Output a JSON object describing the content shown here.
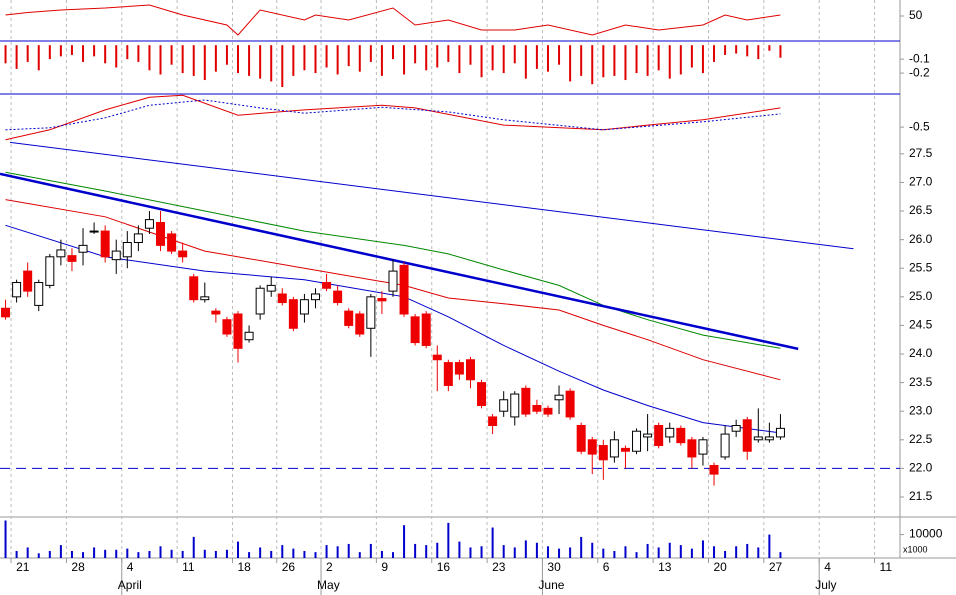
{
  "chart_data": [
    {
      "type": "line",
      "ylim": [
        5,
        80
      ],
      "yticks": [
        50
      ],
      "series": [
        {
          "color": "#e00000",
          "style": "solid",
          "x": [
            0,
            2,
            5,
            9,
            13,
            16,
            20,
            21,
            23,
            27,
            28,
            31,
            35,
            37,
            40,
            43,
            46,
            49,
            53,
            56,
            59,
            63,
            65,
            67,
            70
          ],
          "values": [
            51.9,
            56.5,
            61.3,
            65,
            70.6,
            51.9,
            33.1,
            14.4,
            61.3,
            42.5,
            51.9,
            42.5,
            65,
            33.1,
            42.5,
            23.8,
            23.8,
            33.1,
            14.4,
            33.1,
            23.8,
            33.1,
            51.9,
            42.5,
            51.9
          ]
        }
      ]
    },
    {
      "type": "bar",
      "ylim": [
        -0.35,
        0.03
      ],
      "yticks": [
        -0.1,
        -0.2
      ],
      "color": "#e00000",
      "values": [
        -0.13,
        -0.17,
        -0.12,
        -0.18,
        -0.1,
        -0.08,
        -0.07,
        -0.12,
        -0.08,
        -0.13,
        -0.16,
        -0.1,
        -0.12,
        -0.18,
        -0.21,
        -0.14,
        -0.2,
        -0.22,
        -0.25,
        -0.19,
        -0.14,
        -0.2,
        -0.22,
        -0.24,
        -0.26,
        -0.3,
        -0.22,
        -0.18,
        -0.2,
        -0.16,
        -0.21,
        -0.15,
        -0.19,
        -0.12,
        -0.22,
        -0.1,
        -0.21,
        -0.13,
        -0.18,
        -0.16,
        -0.12,
        -0.2,
        -0.14,
        -0.23,
        -0.18,
        -0.2,
        -0.13,
        -0.24,
        -0.17,
        -0.19,
        -0.14,
        -0.26,
        -0.22,
        -0.28,
        -0.23,
        -0.22,
        -0.25,
        -0.2,
        -0.22,
        -0.18,
        -0.24,
        -0.21,
        -0.16,
        -0.2,
        -0.12,
        -0.07,
        -0.06,
        -0.08,
        -0.1,
        -0.04,
        -0.09
      ]
    },
    {
      "type": "line",
      "ylim": [
        -0.8,
        0
      ],
      "yticks": [
        -0.5
      ],
      "series": [
        {
          "color": "#e00000",
          "style": "solid",
          "x": [
            0,
            4,
            9,
            13,
            16,
            21,
            27,
            34,
            37,
            45,
            54,
            58,
            63,
            70
          ],
          "values": [
            -0.69,
            -0.54,
            -0.24,
            -0.05,
            -0.02,
            -0.32,
            -0.24,
            -0.17,
            -0.21,
            -0.47,
            -0.54,
            -0.47,
            -0.39,
            -0.21
          ]
        },
        {
          "color": "#0000cc",
          "style": "dotted",
          "x": [
            0,
            4,
            9,
            13,
            18,
            23,
            27,
            34,
            40,
            45,
            54,
            63,
            70
          ],
          "values": [
            -0.54,
            -0.51,
            -0.36,
            -0.17,
            -0.09,
            -0.21,
            -0.29,
            -0.2,
            -0.27,
            -0.39,
            -0.54,
            -0.42,
            -0.3
          ]
        }
      ]
    },
    {
      "type": "candlestick",
      "ylim": [
        21.15,
        27.62
      ],
      "yticks": [
        27.5,
        {
          "value": 27,
          "label": "27.0"
        },
        26.5,
        {
          "value": 26,
          "label": "26.0"
        },
        25.5,
        {
          "value": 25,
          "label": "25.0"
        },
        24.5,
        {
          "value": 24,
          "label": "24.0"
        },
        23.5,
        {
          "value": 23,
          "label": "23.0"
        },
        22.5,
        {
          "value": 22,
          "label": "22.0"
        },
        21.5
      ],
      "up_color": "#ffffff",
      "down_color": "#ee0000",
      "open": [
        24.8,
        25.0,
        25.45,
        24.85,
        25.2,
        25.7,
        25.72,
        25.78,
        26.15,
        26.15,
        25.65,
        25.7,
        25.95,
        26.2,
        26.3,
        26.1,
        25.8,
        25.35,
        24.95,
        24.75,
        24.6,
        24.7,
        24.25,
        24.7,
        25.1,
        25.05,
        24.95,
        24.7,
        24.95,
        25.25,
        25.1,
        24.75,
        24.7,
        24.45,
        24.97,
        25.1,
        25.55,
        24.65,
        24.7,
        23.98,
        23.85,
        23.85,
        23.9,
        23.5,
        22.9,
        23.0,
        22.9,
        23.4,
        23.1,
        23.05,
        23.2,
        23.35,
        22.75,
        22.5,
        22.4,
        22.2,
        22.35,
        22.3,
        22.55,
        22.75,
        22.55,
        22.7,
        22.5,
        22.25,
        22.05,
        22.2,
        22.65,
        22.85,
        22.5,
        22.5,
        22.55
      ],
      "high": [
        24.95,
        25.3,
        25.6,
        25.3,
        25.75,
        26.0,
        25.85,
        26.2,
        26.3,
        26.25,
        26.0,
        26.15,
        26.25,
        26.5,
        26.5,
        26.15,
        25.95,
        25.4,
        25.25,
        24.8,
        24.65,
        24.75,
        24.5,
        25.2,
        25.35,
        25.15,
        25.0,
        25.05,
        25.15,
        25.4,
        25.2,
        24.8,
        24.75,
        25.05,
        25.1,
        25.65,
        25.6,
        24.7,
        24.75,
        24.15,
        23.9,
        23.9,
        23.95,
        23.55,
        22.95,
        23.35,
        23.35,
        23.45,
        23.2,
        23.1,
        23.45,
        23.4,
        22.8,
        22.55,
        22.5,
        22.65,
        22.4,
        22.7,
        22.95,
        22.8,
        22.8,
        22.75,
        22.55,
        22.55,
        22.1,
        22.75,
        22.85,
        22.9,
        23.05,
        22.8,
        22.95
      ],
      "low": [
        24.6,
        24.9,
        25.0,
        24.75,
        25.15,
        25.55,
        25.45,
        25.55,
        26.1,
        25.6,
        25.4,
        25.5,
        25.8,
        26.1,
        25.8,
        25.75,
        25.6,
        24.9,
        24.9,
        24.55,
        24.3,
        23.85,
        24.2,
        24.6,
        25.0,
        24.85,
        24.4,
        24.55,
        24.8,
        25.1,
        24.85,
        24.45,
        24.3,
        23.95,
        24.7,
        25.0,
        24.65,
        24.15,
        24.1,
        23.35,
        23.35,
        23.55,
        23.4,
        23.05,
        22.6,
        22.9,
        22.75,
        22.9,
        22.95,
        22.9,
        22.95,
        22.85,
        22.25,
        21.9,
        21.8,
        22.1,
        22.0,
        22.25,
        22.3,
        22.35,
        22.45,
        22.4,
        22.0,
        22.05,
        21.7,
        22.15,
        22.55,
        22.15,
        22.45,
        22.45,
        22.5
      ],
      "close": [
        24.65,
        25.25,
        25.1,
        25.25,
        25.7,
        25.82,
        25.62,
        25.9,
        26.15,
        25.7,
        25.8,
        25.95,
        26.1,
        26.35,
        25.9,
        25.8,
        25.7,
        24.95,
        25.0,
        24.7,
        24.35,
        24.1,
        24.38,
        25.15,
        25.2,
        24.9,
        24.45,
        24.95,
        25.05,
        25.15,
        24.9,
        24.5,
        24.35,
        25.0,
        24.93,
        25.45,
        24.7,
        24.2,
        24.15,
        23.9,
        23.45,
        23.65,
        23.55,
        23.1,
        22.75,
        23.2,
        23.3,
        22.95,
        23.0,
        22.95,
        23.28,
        22.9,
        22.3,
        22.25,
        22.15,
        22.5,
        22.3,
        22.65,
        22.6,
        22.4,
        22.7,
        22.45,
        22.2,
        22.5,
        21.9,
        22.6,
        22.75,
        22.3,
        22.55,
        22.55,
        22.7
      ],
      "series": [
        {
          "color": "#0000cc",
          "style": "solid",
          "width": 1,
          "x": [
            0,
            9,
            18,
            27,
            36,
            40,
            45,
            50,
            54,
            58,
            63,
            70
          ],
          "values": [
            26.25,
            25.7,
            25.45,
            25.3,
            25.0,
            24.65,
            24.15,
            23.7,
            23.37,
            23.1,
            22.8,
            22.62
          ]
        },
        {
          "color": "#dd0000",
          "style": "solid",
          "width": 1,
          "x": [
            0,
            9,
            18,
            27,
            36,
            40,
            45,
            50,
            54,
            58,
            63,
            70
          ],
          "values": [
            26.7,
            26.4,
            25.8,
            25.5,
            25.2,
            24.98,
            24.88,
            24.77,
            24.5,
            24.25,
            23.9,
            23.55
          ]
        },
        {
          "color": "#008800",
          "style": "solid",
          "width": 1,
          "x": [
            0,
            9,
            18,
            27,
            36,
            40,
            45,
            50,
            54,
            58,
            63,
            70
          ],
          "values": [
            27.18,
            26.85,
            26.5,
            26.15,
            25.9,
            25.75,
            25.47,
            25.2,
            24.85,
            24.6,
            24.33,
            24.1
          ]
        },
        {
          "color": "#0000cc",
          "style": "solid",
          "width": 2.5,
          "x": [
            -0.5,
            71.6
          ],
          "values": [
            27.15,
            24.09
          ]
        },
        {
          "color": "#0000cc",
          "style": "solid",
          "width": 1,
          "x": [
            0.4,
            76.6
          ],
          "values": [
            27.7,
            25.84
          ]
        },
        {
          "color": "#0000cc",
          "style": "dashed",
          "width": 1,
          "x": [
            -0.5,
            80.8
          ],
          "values": [
            22,
            22
          ]
        }
      ]
    },
    {
      "type": "bar",
      "ylim": [
        0,
        17500
      ],
      "yticks": [
        10000
      ],
      "unit": "x1000",
      "color": "#0000cc",
      "values": [
        16000,
        3000,
        4500,
        2000,
        3000,
        5500,
        3000,
        2500,
        4500,
        3500,
        3500,
        4000,
        2500,
        3000,
        5000,
        3500,
        3000,
        9000,
        3500,
        3000,
        3500,
        7000,
        2500,
        4500,
        3000,
        5500,
        4000,
        3000,
        2500,
        5500,
        5000,
        6000,
        2500,
        6000,
        3000,
        2500,
        14000,
        6000,
        5500,
        6500,
        15000,
        7000,
        4500,
        5000,
        13000,
        5500,
        4500,
        7500,
        6500,
        5000,
        4000,
        4500,
        9000,
        6500,
        4000,
        3000,
        5000,
        2500,
        6000,
        4500,
        6500,
        5500,
        4000,
        7500,
        5000,
        3000,
        5000,
        6000,
        4500,
        10000,
        2500
      ],
      "xlim": [
        -0.5,
        80.8
      ],
      "xticks": [
        {
          "value": 0.5,
          "label": "21"
        },
        {
          "value": 5.5,
          "label": "28"
        },
        {
          "value": 10.5,
          "label": "4"
        },
        {
          "value": 15.5,
          "label": "11"
        },
        {
          "value": 20.5,
          "label": "18"
        },
        {
          "value": 24.5,
          "label": "26"
        },
        {
          "value": 28.5,
          "label": "2"
        },
        {
          "value": 33.5,
          "label": "9"
        },
        {
          "value": 38.5,
          "label": "16"
        },
        {
          "value": 43.5,
          "label": "23"
        },
        {
          "value": 48.5,
          "label": "30"
        },
        {
          "value": 53.5,
          "label": "6"
        },
        {
          "value": 58.5,
          "label": "13"
        },
        {
          "value": 63.5,
          "label": "20"
        },
        {
          "value": 68.5,
          "label": "27"
        },
        {
          "value": 73.5,
          "label": "4"
        },
        {
          "value": 78.5,
          "label": "11"
        }
      ],
      "month_ticks": [
        {
          "value": 10.5,
          "label": "April"
        },
        {
          "value": 28.5,
          "label": "May"
        },
        {
          "value": 48.5,
          "label": "June"
        },
        {
          "value": 73.5,
          "label": "July"
        }
      ]
    }
  ]
}
